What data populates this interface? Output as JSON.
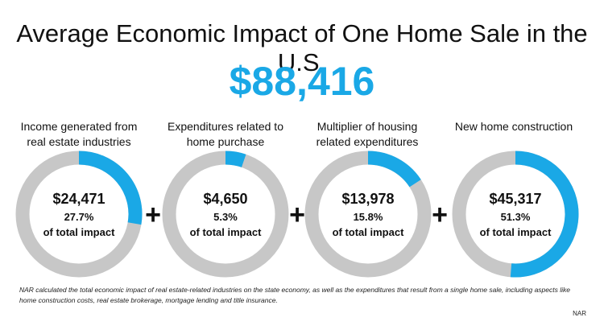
{
  "title": "Average Economic Impact of One Home Sale in the U.S.",
  "total": "$88,416",
  "operator_symbol": "+",
  "footnote": "NAR calculated the total economic impact of real estate-related industries on the state economy, as well as the expenditures that result from a single home sale, including aspects like home construction costs, real estate brokerage, mortgage lending and title insurance.",
  "source": "NAR",
  "colors": {
    "accent": "#1aa8e6",
    "track": "#c7c7c7",
    "text": "#111111"
  },
  "chart_data": {
    "type": "pie",
    "style": "donut",
    "total": 88416,
    "slices": [
      {
        "label": "Income generated from real estate industries",
        "value": 24471,
        "value_label": "$24,471",
        "percent": 27.7,
        "percent_label": "27.7%",
        "sublabel": "of total impact"
      },
      {
        "label": "Expenditures related to home purchase",
        "value": 4650,
        "value_label": "$4,650",
        "percent": 5.3,
        "percent_label": "5.3%",
        "sublabel": "of total impact"
      },
      {
        "label": "Multiplier of housing related expenditures",
        "value": 13978,
        "value_label": "$13,978",
        "percent": 15.8,
        "percent_label": "15.8%",
        "sublabel": "of total impact"
      },
      {
        "label": "New home construction",
        "value": 45317,
        "value_label": "$45,317",
        "percent": 51.3,
        "percent_label": "51.3%",
        "sublabel": "of total impact"
      }
    ]
  }
}
